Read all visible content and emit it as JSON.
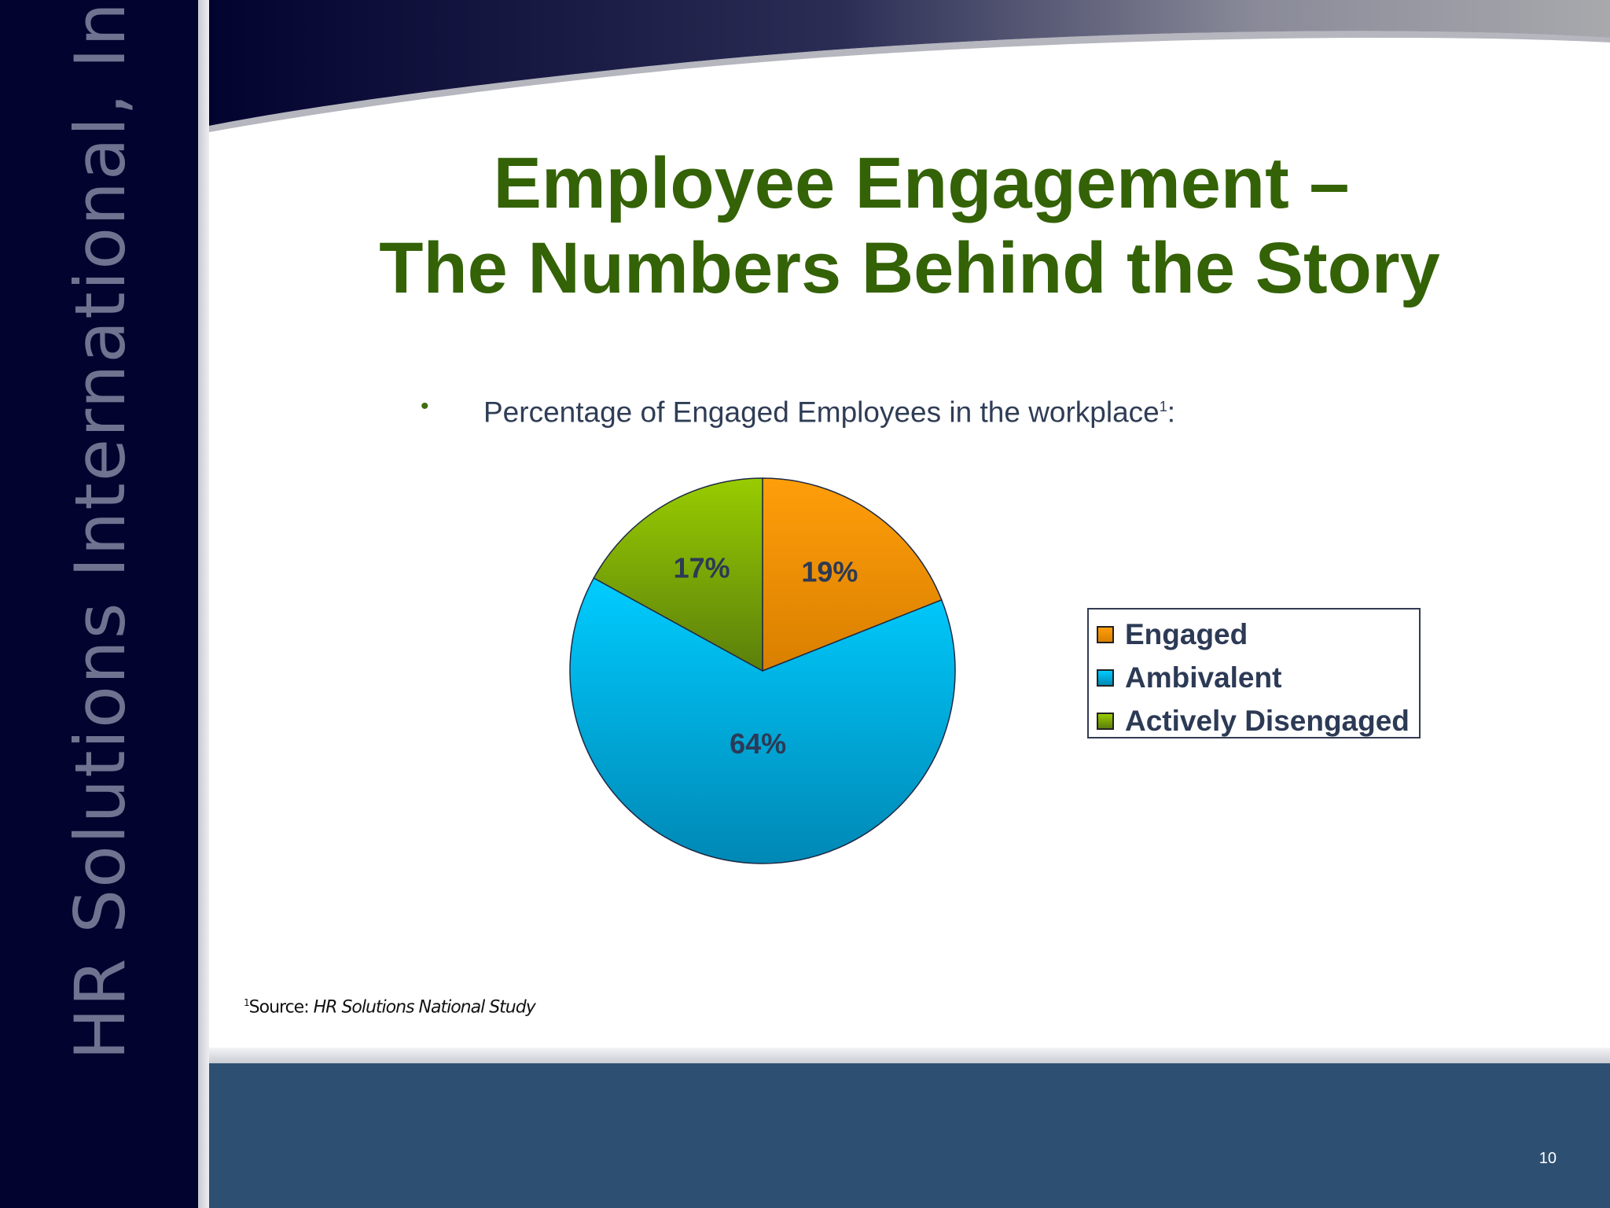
{
  "sidebar": {
    "company_name": "HR Solutions International, Inc."
  },
  "slide": {
    "title_line1": "Employee Engagement –",
    "title_line2": "The Numbers Behind the Story",
    "bullet_text": "Percentage of Engaged Employees in the workplace",
    "bullet_footnote_mark": "1",
    "bullet_suffix": ":",
    "source_mark": "1",
    "source_label": "Source:",
    "source_title": "HR Solutions National Study",
    "page_number": "10"
  },
  "chart_data": {
    "type": "pie",
    "title": "",
    "categories": [
      "Engaged",
      "Ambivalent",
      "Actively Disengaged"
    ],
    "values": [
      19,
      64,
      17
    ],
    "labels": [
      "19%",
      "64%",
      "17%"
    ],
    "colors": [
      "#f7941d",
      "#00b7e6",
      "#7aa516"
    ],
    "legend_position": "right",
    "start_angle": "12 o'clock, clockwise"
  }
}
